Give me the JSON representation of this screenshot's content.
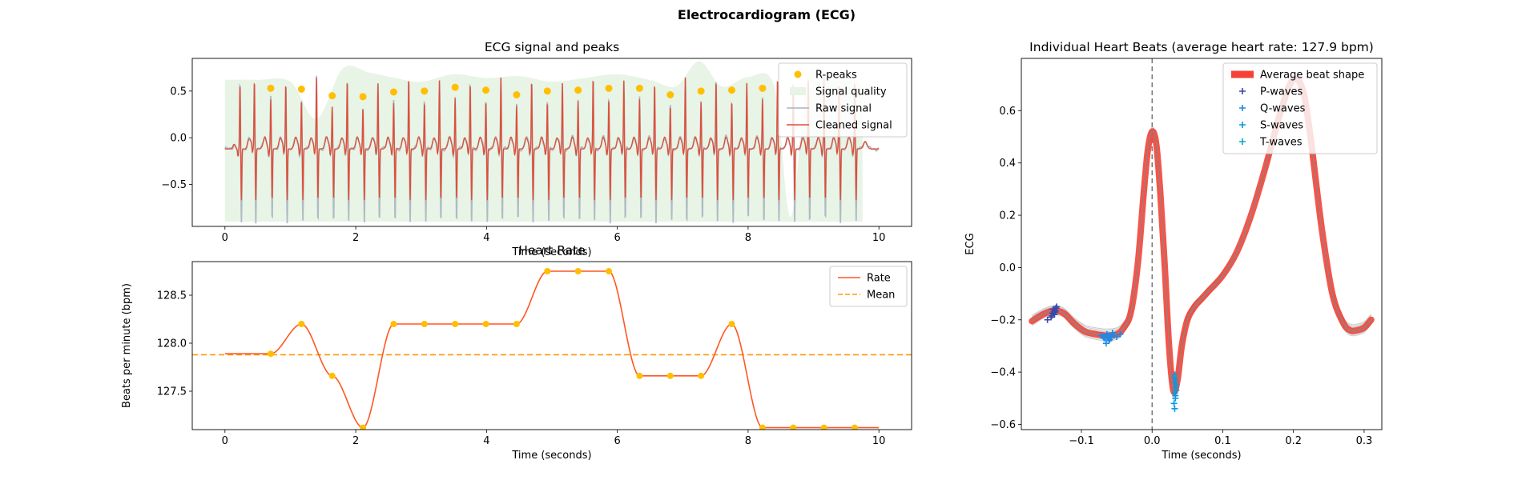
{
  "suptitle": "Electrocardiogram (ECG)",
  "colors": {
    "raw": "#a9b4bf",
    "cleaned": "#e04d37",
    "cleaned_dark": "#8b1a1a",
    "rpeak": "#ffbf00",
    "quality": "#e8f4e6",
    "rate": "#ff5722",
    "mean": "#ff9800",
    "avg_beat": "#f44336",
    "beat_lines": "#9e9e9e",
    "p_wave": "#3949ab",
    "q_wave": "#1e88e5",
    "s_wave": "#039be5",
    "t_wave": "#00acc1",
    "vline": "#666666"
  },
  "chart_data": [
    {
      "id": "ecg",
      "type": "line",
      "title": "ECG signal and peaks",
      "xlabel": "Time (seconds)",
      "ylabel": "",
      "xlim": [
        -0.5,
        10.5
      ],
      "ylim": [
        -0.95,
        0.85
      ],
      "xticks": [
        0,
        2,
        4,
        6,
        8,
        10
      ],
      "yticks": [
        -0.5,
        0.0,
        0.5
      ],
      "ytick_labels": [
        "−0.5",
        "0.0",
        "0.5"
      ],
      "legend": [
        "R-peaks",
        "Signal quality",
        "Raw signal",
        "Cleaned signal"
      ],
      "legend_loc": "upper right",
      "r_peaks": {
        "x": [
          0.7,
          1.17,
          1.64,
          2.11,
          2.58,
          3.05,
          3.52,
          3.99,
          4.46,
          4.93,
          5.4,
          5.87,
          6.34,
          6.81,
          7.28,
          7.75,
          8.22
        ],
        "y": [
          0.53,
          0.52,
          0.45,
          0.44,
          0.49,
          0.5,
          0.54,
          0.51,
          0.46,
          0.5,
          0.51,
          0.53,
          0.53,
          0.46,
          0.5,
          0.51,
          0.53
        ]
      },
      "beat_times": [
        0.23,
        0.45,
        0.7,
        0.93,
        1.17,
        1.4,
        1.64,
        1.87,
        2.11,
        2.34,
        2.58,
        2.81,
        3.05,
        3.28,
        3.52,
        3.75,
        3.99,
        4.22,
        4.46,
        4.69,
        4.93,
        5.16,
        5.4,
        5.63,
        5.87,
        6.1,
        6.34,
        6.57,
        6.81,
        7.04,
        7.28,
        7.51,
        7.75,
        7.98,
        8.22,
        8.45,
        8.69,
        8.92,
        9.16,
        9.39,
        9.63
      ],
      "quality": {
        "x": [
          0.0,
          0.5,
          1.0,
          1.4,
          1.8,
          2.2,
          2.6,
          3.0,
          3.5,
          4.0,
          4.5,
          5.0,
          5.5,
          6.0,
          6.5,
          6.9,
          7.25,
          7.6,
          8.0,
          8.4,
          8.65,
          8.9,
          9.2,
          9.6,
          9.75
        ],
        "y": [
          0.62,
          0.62,
          0.6,
          0.2,
          0.74,
          0.7,
          0.64,
          0.6,
          0.68,
          0.64,
          0.66,
          0.6,
          0.64,
          0.68,
          0.62,
          0.55,
          0.82,
          0.55,
          0.65,
          0.55,
          -0.85,
          0.62,
          0.66,
          0.62,
          0.55
        ]
      }
    },
    {
      "id": "rate",
      "type": "line",
      "title": "Heart Rate",
      "xlabel": "Time (seconds)",
      "ylabel": "Beats per minute (bpm)",
      "xlim": [
        -0.5,
        10.5
      ],
      "ylim": [
        127.1,
        128.85
      ],
      "xticks": [
        0,
        2,
        4,
        6,
        8,
        10
      ],
      "yticks": [
        127.5,
        128.0,
        128.5
      ],
      "legend": [
        "Rate",
        "Mean"
      ],
      "legend_loc": "upper right",
      "mean": 127.88,
      "x": [
        0.0,
        0.7,
        1.17,
        1.64,
        2.11,
        2.58,
        3.05,
        3.52,
        3.99,
        4.46,
        4.93,
        5.4,
        5.87,
        6.34,
        6.81,
        7.28,
        7.75,
        8.22,
        8.69,
        9.16,
        9.63,
        10.0
      ],
      "y": [
        127.89,
        127.89,
        128.2,
        127.66,
        127.12,
        128.2,
        128.2,
        128.2,
        128.2,
        128.2,
        128.75,
        128.75,
        128.75,
        127.66,
        127.66,
        127.66,
        128.2,
        127.12,
        127.12,
        127.12,
        127.12,
        127.12
      ],
      "points_x": [
        0.7,
        1.17,
        1.64,
        2.11,
        2.58,
        3.05,
        3.52,
        3.99,
        4.46,
        4.93,
        5.4,
        5.87,
        6.34,
        6.81,
        7.28,
        7.75,
        8.22,
        8.69,
        9.16,
        9.63
      ],
      "points_y": [
        127.89,
        128.2,
        127.66,
        127.12,
        128.2,
        128.2,
        128.2,
        128.2,
        128.2,
        128.75,
        128.75,
        128.75,
        127.66,
        127.66,
        127.66,
        128.2,
        127.12,
        127.12,
        127.12,
        127.12
      ]
    },
    {
      "id": "beats",
      "type": "line",
      "title": "Individual Heart Beats (average heart rate: 127.9 bpm)",
      "xlabel": "Time (seconds)",
      "ylabel": "ECG",
      "xlim": [
        -0.185,
        0.325
      ],
      "ylim": [
        -0.62,
        0.8
      ],
      "xticks": [
        -0.1,
        0.0,
        0.1,
        0.2,
        0.3
      ],
      "xtick_labels": [
        "−0.1",
        "0.0",
        "0.1",
        "0.2",
        "0.3"
      ],
      "yticks": [
        -0.6,
        -0.4,
        -0.2,
        0.0,
        0.2,
        0.4,
        0.6
      ],
      "ytick_labels": [
        "−0.6",
        "−0.4",
        "−0.2",
        "0.0",
        "0.2",
        "0.4",
        "0.6"
      ],
      "legend": [
        "Average beat shape",
        "P-waves",
        "Q-waves",
        "S-waves",
        "T-waves"
      ],
      "legend_loc": "upper right",
      "avg_beat": {
        "x": [
          -0.17,
          -0.155,
          -0.14,
          -0.125,
          -0.11,
          -0.095,
          -0.08,
          -0.065,
          -0.05,
          -0.04,
          -0.03,
          -0.02,
          -0.012,
          -0.006,
          0.0,
          0.006,
          0.012,
          0.018,
          0.024,
          0.03,
          0.036,
          0.042,
          0.05,
          0.06,
          0.07,
          0.08,
          0.1,
          0.12,
          0.14,
          0.16,
          0.18,
          0.195,
          0.205,
          0.215,
          0.225,
          0.24,
          0.255,
          0.27,
          0.28,
          0.29,
          0.3,
          0.31
        ],
        "y": [
          -0.205,
          -0.18,
          -0.165,
          -0.175,
          -0.215,
          -0.245,
          -0.255,
          -0.26,
          -0.255,
          -0.23,
          -0.17,
          0.02,
          0.28,
          0.45,
          0.52,
          0.47,
          0.27,
          0.0,
          -0.3,
          -0.47,
          -0.43,
          -0.3,
          -0.2,
          -0.15,
          -0.12,
          -0.09,
          -0.03,
          0.06,
          0.2,
          0.38,
          0.58,
          0.7,
          0.72,
          0.66,
          0.48,
          0.15,
          -0.1,
          -0.21,
          -0.24,
          -0.24,
          -0.23,
          -0.2
        ]
      },
      "p_waves": {
        "x": [
          -0.148,
          -0.143,
          -0.141,
          -0.139,
          -0.137,
          -0.136,
          -0.135,
          -0.14,
          -0.138,
          -0.142,
          -0.137
        ],
        "y": [
          -0.2,
          -0.19,
          -0.175,
          -0.17,
          -0.165,
          -0.155,
          -0.15,
          -0.16,
          -0.18,
          -0.185,
          -0.17
        ]
      },
      "q_waves": {
        "x": [
          -0.072,
          -0.069,
          -0.066,
          -0.064,
          -0.062,
          -0.06,
          -0.058,
          -0.056,
          -0.054,
          -0.065,
          -0.061,
          -0.05,
          -0.045,
          -0.068
        ],
        "y": [
          -0.26,
          -0.265,
          -0.27,
          -0.255,
          -0.26,
          -0.275,
          -0.265,
          -0.25,
          -0.26,
          -0.29,
          -0.28,
          -0.265,
          -0.255,
          -0.27
        ]
      },
      "s_waves": {
        "x": [
          0.031,
          0.032,
          0.033,
          0.034,
          0.032,
          0.033,
          0.031,
          0.034,
          0.032,
          0.033,
          0.032,
          0.033
        ],
        "y": [
          -0.42,
          -0.44,
          -0.46,
          -0.45,
          -0.48,
          -0.5,
          -0.52,
          -0.47,
          -0.54,
          -0.43,
          -0.41,
          -0.49
        ]
      },
      "t_waves": {
        "x": [],
        "y": []
      }
    }
  ]
}
